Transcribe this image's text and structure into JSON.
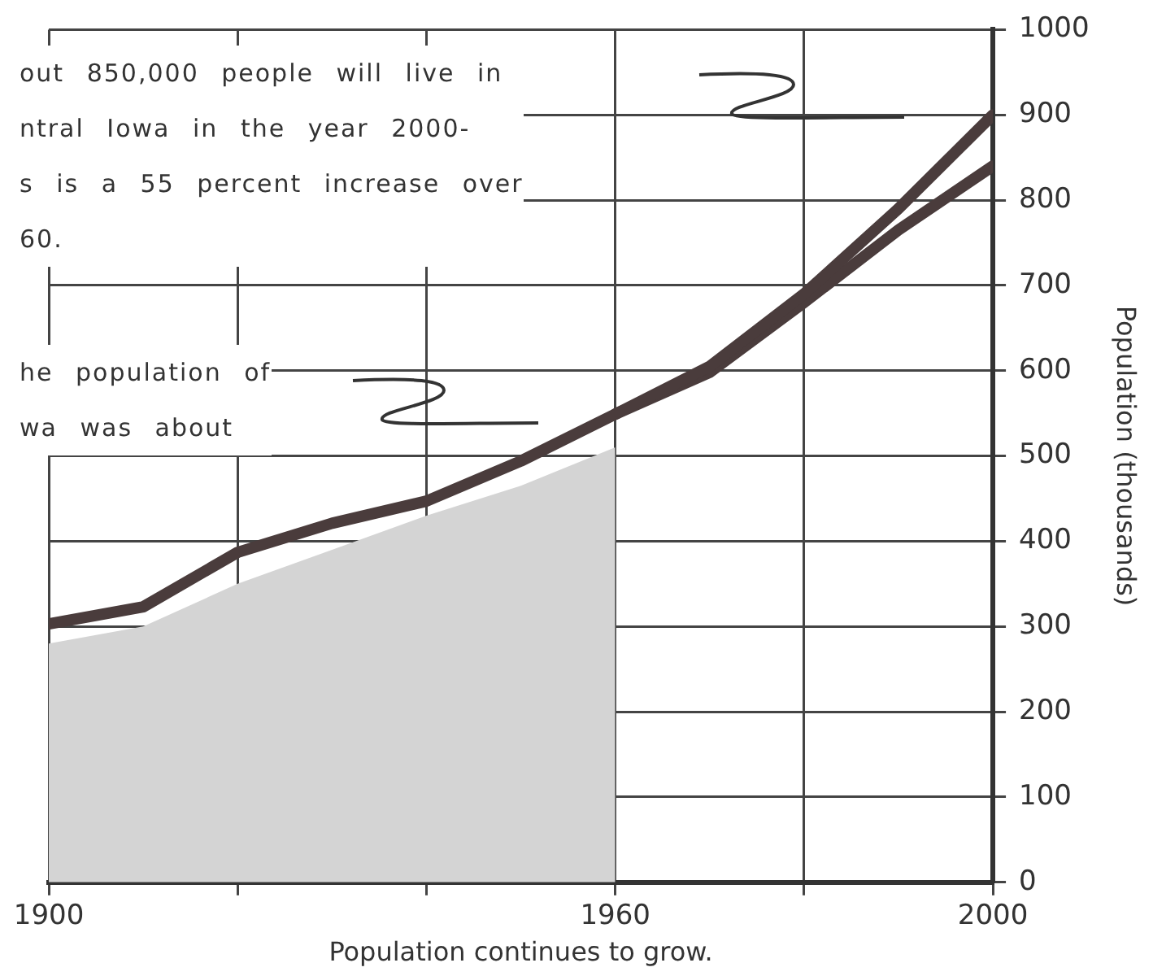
{
  "chart_data": {
    "type": "line",
    "xlabel": "Population continues to grow.",
    "ylabel": "Population (thousands)",
    "annotations": [
      "out 850,000 people will live in\nntral Iowa in the year 2000-\ns is a 55 percent increase over\n60.",
      "he population of\nwa was about"
    ],
    "series": [
      {
        "type": "area",
        "color": "#d4d4d4",
        "x": [
          1900,
          1910,
          1920,
          1930,
          1940,
          1950,
          1960
        ],
        "values": [
          280,
          300,
          350,
          390,
          430,
          465,
          510
        ]
      },
      {
        "color": "#4a3c3c",
        "x": [
          1900,
          1910,
          1920,
          1930,
          1940,
          1950,
          1960,
          1970,
          1980,
          1990,
          2000
        ],
        "values": [
          303,
          323,
          387,
          421,
          447,
          494,
          549,
          605,
          690,
          790,
          900
        ]
      },
      {
        "color": "#4a3c3c",
        "x": [
          1960,
          1970,
          1980,
          1990,
          2000
        ],
        "values": [
          549,
          598,
          680,
          765,
          840
        ]
      }
    ],
    "xlim": [
      1900,
      2000
    ],
    "xticks": [
      1900,
      {
        "value": 1920,
        "label": null
      },
      {
        "value": 1940,
        "label": null
      },
      1960,
      {
        "value": 1980,
        "label": null
      },
      2000
    ],
    "ylim": [
      0,
      1000
    ],
    "yticks": [
      0,
      100,
      200,
      300,
      400,
      500,
      600,
      700,
      800,
      900,
      1000
    ],
    "grid": true,
    "legend": false
  }
}
